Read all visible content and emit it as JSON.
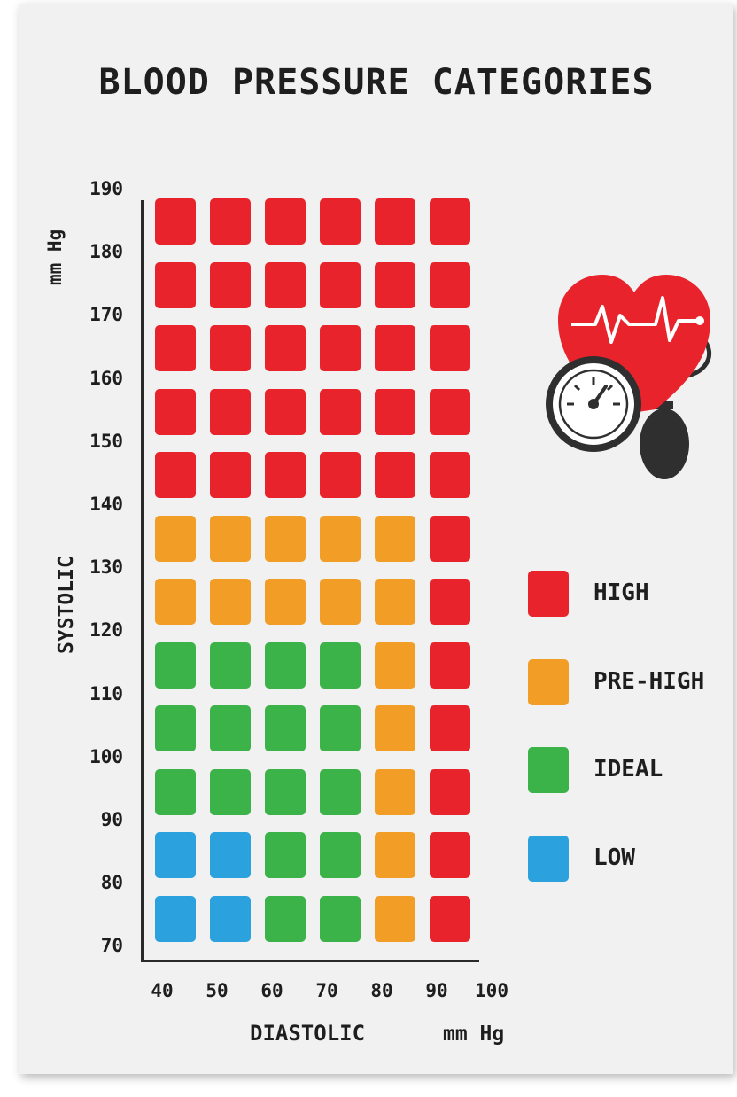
{
  "chart_data": {
    "type": "heatmap",
    "title": "BLOOD PRESSURE CATEGORIES",
    "ylabel": "SYSTOLIC",
    "yunit": "mm Hg",
    "xlabel": "DIASTOLIC",
    "xunit": "mm Hg",
    "x_ticks": [
      "40",
      "50",
      "60",
      "70",
      "80",
      "90",
      "100"
    ],
    "y_ticks": [
      "190",
      "180",
      "170",
      "160",
      "150",
      "140",
      "130",
      "120",
      "110",
      "100",
      "90",
      "80",
      "70"
    ],
    "x_columns": [
      40,
      50,
      60,
      70,
      80,
      90
    ],
    "y_rows": [
      180,
      170,
      160,
      150,
      140,
      130,
      120,
      110,
      100,
      90,
      80,
      70
    ],
    "cells": [
      [
        "HIGH",
        "HIGH",
        "HIGH",
        "HIGH",
        "HIGH",
        "HIGH"
      ],
      [
        "HIGH",
        "HIGH",
        "HIGH",
        "HIGH",
        "HIGH",
        "HIGH"
      ],
      [
        "HIGH",
        "HIGH",
        "HIGH",
        "HIGH",
        "HIGH",
        "HIGH"
      ],
      [
        "HIGH",
        "HIGH",
        "HIGH",
        "HIGH",
        "HIGH",
        "HIGH"
      ],
      [
        "HIGH",
        "HIGH",
        "HIGH",
        "HIGH",
        "HIGH",
        "HIGH"
      ],
      [
        "PRE-HIGH",
        "PRE-HIGH",
        "PRE-HIGH",
        "PRE-HIGH",
        "PRE-HIGH",
        "HIGH"
      ],
      [
        "PRE-HIGH",
        "PRE-HIGH",
        "PRE-HIGH",
        "PRE-HIGH",
        "PRE-HIGH",
        "HIGH"
      ],
      [
        "IDEAL",
        "IDEAL",
        "IDEAL",
        "IDEAL",
        "PRE-HIGH",
        "HIGH"
      ],
      [
        "IDEAL",
        "IDEAL",
        "IDEAL",
        "IDEAL",
        "PRE-HIGH",
        "HIGH"
      ],
      [
        "IDEAL",
        "IDEAL",
        "IDEAL",
        "IDEAL",
        "PRE-HIGH",
        "HIGH"
      ],
      [
        "LOW",
        "LOW",
        "IDEAL",
        "IDEAL",
        "PRE-HIGH",
        "HIGH"
      ],
      [
        "LOW",
        "LOW",
        "IDEAL",
        "IDEAL",
        "PRE-HIGH",
        "HIGH"
      ]
    ],
    "legend": [
      {
        "label": "HIGH",
        "color": "#e8232b"
      },
      {
        "label": "PRE-HIGH",
        "color": "#f19d26"
      },
      {
        "label": "IDEAL",
        "color": "#3bb349"
      },
      {
        "label": "LOW",
        "color": "#2ba2dd"
      }
    ],
    "legend_position": "right",
    "grid": false
  },
  "illustration": {
    "icons": [
      "heart-icon",
      "pressure-gauge-icon",
      "pump-bulb-icon"
    ],
    "heart_color": "#e8232b",
    "line_color": "#333333"
  }
}
